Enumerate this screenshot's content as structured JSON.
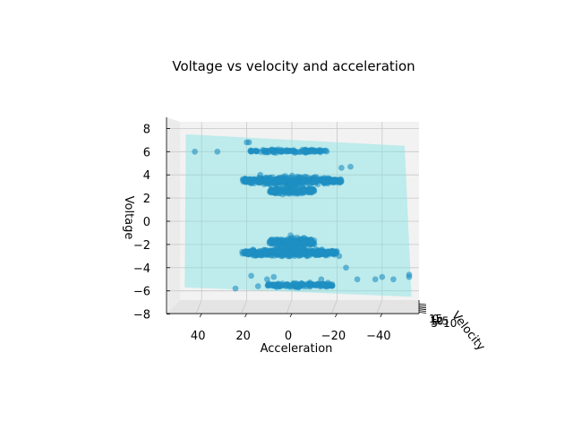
{
  "chart_data": {
    "type": "scatter",
    "projection": "3d",
    "title": "Voltage vs velocity and acceleration",
    "xlabel": "Acceleration",
    "ylabel": "Velocity",
    "zlabel": "Voltage",
    "x_ticks": [
      "40",
      "20",
      "0",
      "−20",
      "−40"
    ],
    "y_ticks": [
      "15",
      "10",
      "5",
      "0",
      "−5",
      "−10"
    ],
    "z_ticks": [
      "8",
      "6",
      "4",
      "2",
      "0",
      "−2",
      "−4",
      "−6",
      "−8"
    ],
    "xlim": [
      55,
      -55
    ],
    "zlim": [
      -8,
      8.5
    ],
    "grid": true,
    "colors": {
      "points": "#1f8fc3",
      "plane": "#7fe3e3"
    },
    "plane": {
      "corners_xz": [
        [
          47,
          7.5
        ],
        [
          -50,
          6.5
        ],
        [
          -53,
          -6.5
        ],
        [
          47.5,
          -5.7
        ]
      ]
    },
    "series": [
      {
        "clusters": [
          {
            "x_min": -16,
            "x_max": 19,
            "z_center": 6.05,
            "z_spread": 0.25,
            "count": 120
          },
          {
            "x_min": -22,
            "x_max": 22,
            "z_center": 3.5,
            "z_spread": 0.55,
            "count": 420
          },
          {
            "x_min": -10,
            "x_max": 10,
            "z_center": 2.6,
            "z_spread": 0.6,
            "count": 160
          },
          {
            "x_min": -10,
            "x_max": 10,
            "z_center": -1.8,
            "z_spread": 0.7,
            "count": 200
          },
          {
            "x_min": -20,
            "x_max": 22,
            "z_center": -2.7,
            "z_spread": 0.6,
            "count": 420
          },
          {
            "x_min": -18,
            "x_max": 11,
            "z_center": -5.5,
            "z_spread": 0.35,
            "count": 150
          }
        ],
        "points": [
          {
            "x": 43,
            "z": 6.0
          },
          {
            "x": 33,
            "z": 6.0
          },
          {
            "x": 20,
            "z": 6.8
          },
          {
            "x": 19,
            "z": 6.8
          },
          {
            "x": -22,
            "z": 4.6
          },
          {
            "x": -26,
            "z": 4.7
          },
          {
            "x": -21,
            "z": -3.0
          },
          {
            "x": -24,
            "z": -4.0
          },
          {
            "x": -29,
            "z": -5.0
          },
          {
            "x": -37,
            "z": -5.0
          },
          {
            "x": -40,
            "z": -4.8
          },
          {
            "x": -45,
            "z": -5.0
          },
          {
            "x": -52,
            "z": -4.6
          },
          {
            "x": -52,
            "z": -4.8
          },
          {
            "x": 8,
            "z": -4.8
          },
          {
            "x": 11,
            "z": -5.0
          },
          {
            "x": 15,
            "z": -5.6
          },
          {
            "x": 18,
            "z": -4.7
          },
          {
            "x": 25,
            "z": -5.8
          },
          {
            "x": -13,
            "z": -5.0
          },
          {
            "x": -16,
            "z": -5.3
          },
          {
            "x": -10,
            "z": 6.1
          },
          {
            "x": 14,
            "z": 4.0
          }
        ]
      }
    ]
  }
}
